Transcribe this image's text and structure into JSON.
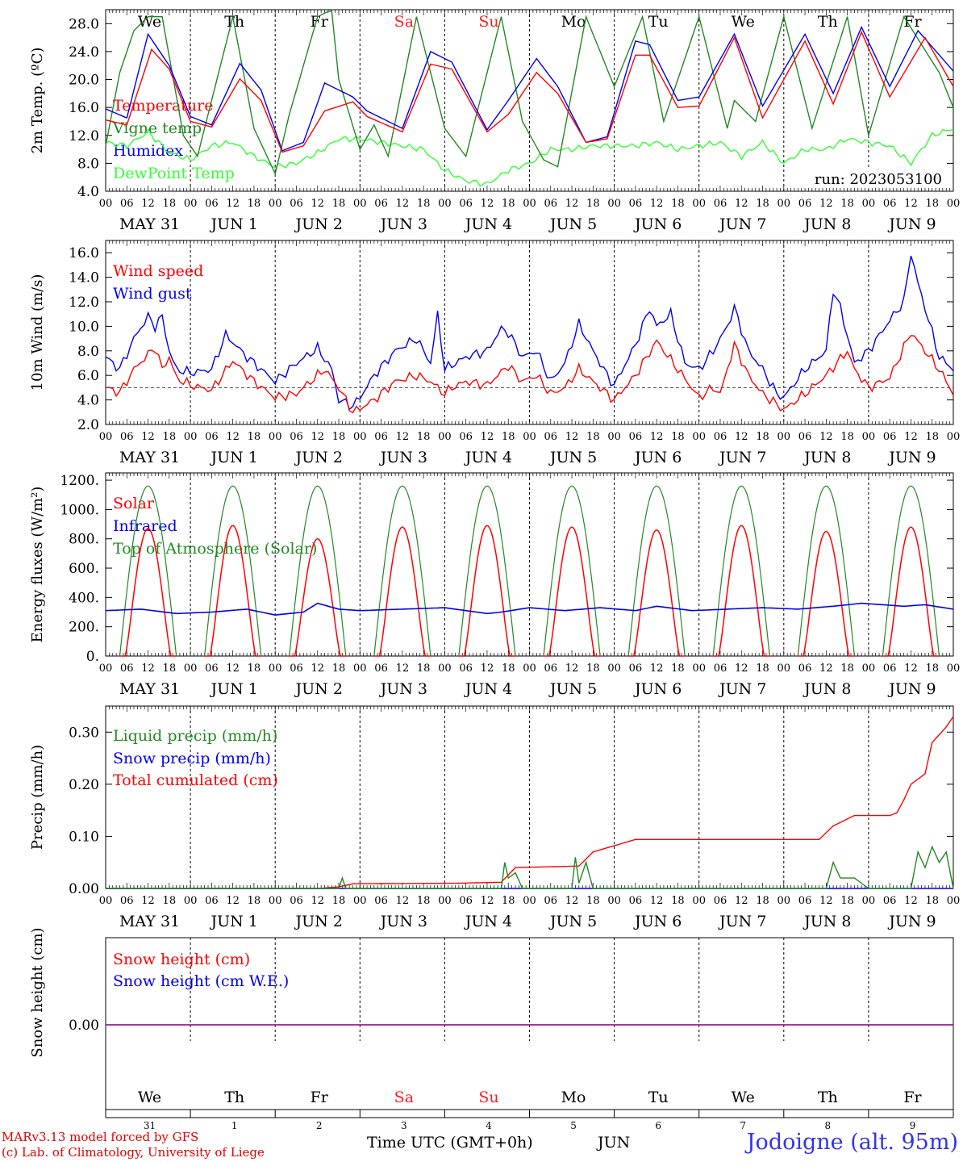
{
  "days": {
    "weekday_labels": [
      "We",
      "Th",
      "Fr",
      "Sa",
      "Su",
      "Mo",
      "Tu",
      "We",
      "Th",
      "Fr"
    ],
    "weekday_colors": [
      "#000000",
      "#000000",
      "#000000",
      "#ff2020",
      "#ff2020",
      "#000000",
      "#000000",
      "#000000",
      "#000000",
      "#000000"
    ],
    "date_labels": [
      "MAY 31",
      "JUN  1",
      "JUN  2",
      "JUN  3",
      "JUN  4",
      "JUN  5",
      "JUN  6",
      "JUN  7",
      "JUN  8",
      "JUN  9"
    ],
    "hour_ticks": [
      "00",
      "06",
      "12",
      "18"
    ],
    "final_hour": "00",
    "day_numbers": [
      "31",
      "1",
      "2",
      "3",
      "4",
      "5",
      "6",
      "7",
      "8",
      "9"
    ]
  },
  "chart_data": [
    {
      "type": "line",
      "ylabel": "2m Temp. (ºC)",
      "ylim": [
        4,
        30
      ],
      "yticks": [
        "28.0",
        "24.0",
        "20.0",
        "16.0",
        "12.0",
        "8.0",
        "4.0"
      ],
      "ytick_values": [
        28,
        24,
        20,
        16,
        12,
        8,
        4
      ],
      "run_label": "run: 2023053100",
      "x_unit": "hours since MAY 31 00 UTC",
      "series": [
        {
          "name": "Temperature",
          "color": "#ff0000",
          "x": [
            0,
            6,
            13,
            18,
            24,
            30,
            38,
            44,
            50,
            56,
            62,
            70,
            74,
            84,
            92,
            98,
            108,
            114,
            122,
            128,
            136,
            142,
            150,
            154,
            162,
            168,
            178,
            186,
            198,
            206,
            214,
            222,
            232,
            240
          ],
          "y": [
            14.2,
            13.5,
            24.3,
            21.5,
            14.0,
            13.2,
            20.1,
            17.0,
            9.6,
            10.5,
            15.5,
            16.8,
            14.7,
            12.5,
            22.2,
            21.5,
            12.5,
            15.0,
            21.0,
            18.0,
            11.0,
            11.5,
            23.5,
            23.5,
            16.0,
            16.2,
            26.0,
            14.5,
            25.5,
            16.5,
            26.8,
            17.5,
            26.0,
            19.0
          ]
        },
        {
          "name": "Vigne temp",
          "color": "#228822",
          "x": [
            0,
            4,
            8,
            12,
            16,
            22,
            26,
            36,
            42,
            48,
            52,
            60,
            64,
            66,
            72,
            76,
            80,
            88,
            96,
            102,
            112,
            118,
            124,
            128,
            136,
            144,
            152,
            158,
            168,
            176,
            178,
            184,
            192,
            200,
            210,
            216,
            226,
            236,
            240
          ],
          "y": [
            10.5,
            21,
            27,
            29,
            29,
            12,
            9,
            29,
            13,
            6.5,
            15,
            29,
            30,
            20,
            10,
            13.5,
            9,
            29,
            13,
            9,
            29,
            14,
            8.5,
            7.5,
            29,
            19,
            29,
            14,
            29,
            13,
            17,
            14,
            29,
            13,
            29,
            12,
            29,
            21,
            16
          ]
        },
        {
          "name": "Humidex",
          "color": "#0000ee",
          "x": [
            0,
            6,
            12,
            18,
            24,
            30,
            38,
            44,
            50,
            56,
            62,
            70,
            74,
            84,
            92,
            98,
            108,
            114,
            122,
            128,
            136,
            142,
            150,
            154,
            162,
            168,
            178,
            186,
            198,
            206,
            214,
            222,
            230,
            240
          ],
          "y": [
            15.8,
            14.5,
            26.5,
            22,
            14.7,
            13.5,
            22.3,
            18.5,
            9.8,
            11,
            19.5,
            17.5,
            15.5,
            13,
            24,
            22.5,
            12.8,
            17,
            23,
            19,
            11,
            11.8,
            25.5,
            25,
            17,
            17.5,
            26.5,
            16.2,
            26.5,
            18,
            27.5,
            19,
            27,
            21.2
          ]
        },
        {
          "name": "DewPoint Temp",
          "color": "#33ff33",
          "x": [
            0,
            6,
            12,
            18,
            24,
            30,
            36,
            42,
            48,
            54,
            60,
            66,
            72,
            78,
            84,
            90,
            96,
            102,
            108,
            114,
            120,
            126,
            132,
            138,
            144,
            150,
            156,
            162,
            168,
            174,
            180,
            186,
            192,
            198,
            204,
            210,
            216,
            222,
            228,
            234,
            240
          ],
          "y": [
            11,
            10.5,
            12.5,
            9.5,
            8.5,
            10.5,
            11,
            9,
            7.5,
            8,
            9.5,
            11.5,
            11.5,
            11,
            10.5,
            10,
            7,
            5.5,
            5,
            7,
            8,
            10,
            10,
            10.5,
            10.5,
            10.5,
            11,
            10,
            10.5,
            11,
            9,
            11,
            8,
            10,
            10,
            11.5,
            11,
            10.5,
            8,
            12,
            13
          ]
        }
      ]
    },
    {
      "type": "line",
      "ylabel": "10m Wind (m/s)",
      "ylim": [
        2,
        17
      ],
      "yticks": [
        "16.0",
        "14.0",
        "12.0",
        "10.0",
        "8.0",
        "6.0",
        "4.0",
        "2.0"
      ],
      "ytick_values": [
        16,
        14,
        12,
        10,
        8,
        6,
        4,
        2
      ],
      "reference_line": 5,
      "series": [
        {
          "name": "Wind speed",
          "color": "#ff0000",
          "x": [
            0,
            4,
            8,
            14,
            16,
            18,
            20,
            24,
            30,
            36,
            42,
            48,
            54,
            62,
            66,
            70,
            72,
            76,
            82,
            88,
            92,
            96,
            98,
            102,
            108,
            114,
            118,
            122,
            126,
            130,
            134,
            138,
            142,
            144,
            150,
            156,
            162,
            168,
            172,
            174,
            178,
            182,
            186,
            192,
            198,
            204,
            210,
            212,
            216,
            222,
            228,
            232,
            236,
            240
          ],
          "y": [
            5,
            4.6,
            6.5,
            8.3,
            6.5,
            7.5,
            5.8,
            5.2,
            4.8,
            7.2,
            5.5,
            4.2,
            4.5,
            6.5,
            5.0,
            3.0,
            3.3,
            4.0,
            5.5,
            6.0,
            5.5,
            4.5,
            5.0,
            5.5,
            5.2,
            6.8,
            5.5,
            6.0,
            4.5,
            5.0,
            6.5,
            5.5,
            4.5,
            4.0,
            6.0,
            8.8,
            6.5,
            4.2,
            5.0,
            4.5,
            8.5,
            6.0,
            4.5,
            3.2,
            4.5,
            6.0,
            8.0,
            6.5,
            5.0,
            5.8,
            9.5,
            8.0,
            6.5,
            4.5
          ]
        },
        {
          "name": "Wind gust",
          "color": "#0000ee",
          "x": [
            0,
            4,
            8,
            12,
            14,
            16,
            18,
            20,
            24,
            30,
            34,
            40,
            48,
            54,
            60,
            64,
            66,
            70,
            72,
            76,
            82,
            88,
            92,
            94,
            96,
            102,
            108,
            112,
            114,
            118,
            122,
            126,
            130,
            134,
            138,
            142,
            144,
            150,
            154,
            156,
            160,
            164,
            168,
            172,
            176,
            178,
            182,
            186,
            190,
            192,
            198,
            204,
            206,
            208,
            212,
            216,
            222,
            226,
            228,
            230,
            234,
            236,
            240
          ],
          "y": [
            7.5,
            6.5,
            9.0,
            10.8,
            10.0,
            10.8,
            8.0,
            6.5,
            6.2,
            6.5,
            9.3,
            7.5,
            5.5,
            7.0,
            8.2,
            6.5,
            4.0,
            3.5,
            4.2,
            6.0,
            8.0,
            9.0,
            7.0,
            11.0,
            6.5,
            7.5,
            8.0,
            9.8,
            9.5,
            7.5,
            8.0,
            5.5,
            7.0,
            10.2,
            8.0,
            6.0,
            5.2,
            8.5,
            11.5,
            10.0,
            11.0,
            7.0,
            6.5,
            8.0,
            10.0,
            11.5,
            8.0,
            6.5,
            4.5,
            4.2,
            6.5,
            8.0,
            13.0,
            11.5,
            7.0,
            8.0,
            10.5,
            12.0,
            16.0,
            13.5,
            9.5,
            7.5,
            6.5
          ]
        }
      ]
    },
    {
      "type": "line",
      "ylabel": "Energy fluxes (W/m²)",
      "ylim": [
        0,
        1250
      ],
      "yticks": [
        "1200.",
        "1000.",
        "800.",
        "600.",
        "400.",
        "200.",
        "0."
      ],
      "ytick_values": [
        1200,
        1000,
        800,
        600,
        400,
        200,
        0
      ],
      "daily_solar_peak": [
        870,
        890,
        800,
        880,
        890,
        880,
        860,
        890,
        850,
        880
      ],
      "daily_toa_peak": 1160,
      "day_start_hour": 4,
      "day_end_hour": 20,
      "series": [
        {
          "name": "Solar",
          "color": "#ff0000"
        },
        {
          "name": "Infrared",
          "color": "#0000ee",
          "x": [
            0,
            10,
            20,
            30,
            40,
            48,
            56,
            60,
            66,
            72,
            84,
            96,
            108,
            112,
            120,
            130,
            140,
            150,
            156,
            166,
            176,
            186,
            196,
            206,
            214,
            226,
            232,
            240
          ],
          "y": [
            310,
            320,
            290,
            300,
            320,
            280,
            300,
            360,
            320,
            310,
            320,
            330,
            290,
            300,
            330,
            310,
            330,
            310,
            340,
            310,
            320,
            330,
            320,
            340,
            360,
            340,
            350,
            320
          ]
        },
        {
          "name": "Top of Atmosphere (Solar)",
          "color": "#228822"
        }
      ]
    },
    {
      "type": "line",
      "ylabel": "Precip (mm/h)",
      "ylim": [
        0,
        0.35
      ],
      "yticks": [
        "0.30",
        "0.20",
        "0.10",
        "0.00"
      ],
      "ytick_values": [
        0.3,
        0.2,
        0.1,
        0.0
      ],
      "series": [
        {
          "name": "Liquid precip (mm/h)",
          "color": "#228822",
          "x": [
            0,
            66,
            67,
            68,
            100,
            112,
            113,
            114,
            116,
            118,
            132,
            133,
            134,
            136,
            138,
            150,
            204,
            206,
            208,
            212,
            216,
            228,
            230,
            232,
            234,
            236,
            238,
            240
          ],
          "y": [
            0,
            0,
            0.02,
            0,
            0,
            0,
            0.05,
            0.02,
            0.03,
            0,
            0,
            0.06,
            0.01,
            0.05,
            0,
            0,
            0,
            0.05,
            0.02,
            0.02,
            0,
            0,
            0.07,
            0.04,
            0.08,
            0.05,
            0.07,
            0
          ]
        },
        {
          "name": "Snow precip (mm/h)",
          "color": "#0000ee",
          "x": [
            0,
            240
          ],
          "y": [
            0,
            0
          ]
        },
        {
          "name": "Total cumulated (cm)",
          "color": "#ff0000",
          "x": [
            0,
            60,
            66,
            70,
            100,
            112,
            116,
            134,
            138,
            150,
            202,
            206,
            212,
            222,
            224,
            226,
            228,
            232,
            234,
            238,
            240
          ],
          "y": [
            0,
            0,
            0.003,
            0.009,
            0.01,
            0.012,
            0.04,
            0.043,
            0.07,
            0.094,
            0.094,
            0.12,
            0.14,
            0.14,
            0.145,
            0.17,
            0.2,
            0.22,
            0.28,
            0.31,
            0.33
          ]
        }
      ]
    },
    {
      "type": "line",
      "ylabel": "Snow height (cm)",
      "yticks": [
        "0.00"
      ],
      "ytick_values": [
        0
      ],
      "series": [
        {
          "name": "Snow height (cm)",
          "color": "#ff0000",
          "x": [
            0,
            240
          ],
          "y": [
            0,
            0
          ]
        },
        {
          "name": "Snow height (cm W.E.)",
          "color": "#0000ee",
          "x": [
            0,
            240
          ],
          "y": [
            0,
            0
          ]
        }
      ]
    }
  ],
  "footer": {
    "credit_line1": "MARv3.13 model forced by GFS",
    "credit_line2": "(c) Lab. of Climatology, University of Liege",
    "xlabel": "Time UTC (GMT+0h)",
    "month": "JUN",
    "station": "Jodoigne (alt. 95m)"
  }
}
